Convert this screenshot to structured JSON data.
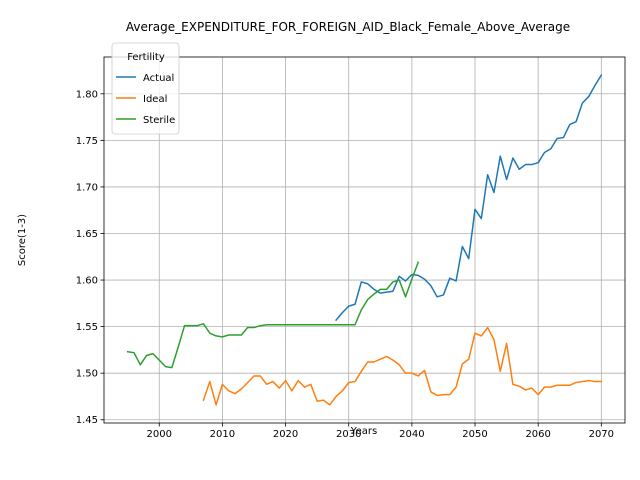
{
  "chart_data": {
    "type": "line",
    "title": "Average_EXPENDITURE_FOR_FOREIGN_AID_Black_Female_Above_Average",
    "xlabel": "Years",
    "ylabel": "Score(1-3)",
    "xlim": [
      1991.25,
      2073.75
    ],
    "ylim": [
      1.4465,
      1.8395
    ],
    "xticks": [
      "2000",
      "2010",
      "2020",
      "2030",
      "2040",
      "2050",
      "2060",
      "2070"
    ],
    "yticks": [
      "1.45",
      "1.50",
      "1.55",
      "1.60",
      "1.65",
      "1.70",
      "1.75",
      "1.80"
    ],
    "grid": true,
    "legend": {
      "title": "Fertility",
      "placement": "top-left"
    },
    "series": [
      {
        "name": "Actual",
        "color": "#1f77b4",
        "points": [
          [
            2028,
            1.557
          ],
          [
            2029,
            1.565
          ],
          [
            2030,
            1.572
          ],
          [
            2031,
            1.574
          ],
          [
            2032,
            1.598
          ],
          [
            2033,
            1.596
          ],
          [
            2034,
            1.59
          ],
          [
            2035,
            1.586
          ],
          [
            2036,
            1.587
          ],
          [
            2037,
            1.588
          ],
          [
            2038,
            1.604
          ],
          [
            2039,
            1.599
          ],
          [
            2040,
            1.606
          ],
          [
            2041,
            1.605
          ],
          [
            2042,
            1.601
          ],
          [
            2043,
            1.594
          ],
          [
            2044,
            1.582
          ],
          [
            2045,
            1.584
          ],
          [
            2046,
            1.602
          ],
          [
            2047,
            1.599
          ],
          [
            2048,
            1.636
          ],
          [
            2049,
            1.623
          ],
          [
            2050,
            1.676
          ],
          [
            2051,
            1.666
          ],
          [
            2052,
            1.713
          ],
          [
            2053,
            1.694
          ],
          [
            2054,
            1.733
          ],
          [
            2055,
            1.708
          ],
          [
            2056,
            1.731
          ],
          [
            2057,
            1.719
          ],
          [
            2058,
            1.724
          ],
          [
            2059,
            1.724
          ],
          [
            2060,
            1.726
          ],
          [
            2061,
            1.737
          ],
          [
            2062,
            1.741
          ],
          [
            2063,
            1.752
          ],
          [
            2064,
            1.753
          ],
          [
            2065,
            1.767
          ],
          [
            2066,
            1.77
          ],
          [
            2067,
            1.79
          ],
          [
            2068,
            1.797
          ],
          [
            2069,
            1.809
          ],
          [
            2070,
            1.82
          ]
        ]
      },
      {
        "name": "Ideal",
        "color": "#ff7f0e",
        "points": [
          [
            2007,
            1.471
          ],
          [
            2008,
            1.491
          ],
          [
            2009,
            1.466
          ],
          [
            2010,
            1.488
          ],
          [
            2011,
            1.481
          ],
          [
            2012,
            1.478
          ],
          [
            2013,
            1.483
          ],
          [
            2014,
            1.49
          ],
          [
            2015,
            1.497
          ],
          [
            2016,
            1.497
          ],
          [
            2017,
            1.488
          ],
          [
            2018,
            1.491
          ],
          [
            2019,
            1.484
          ],
          [
            2020,
            1.492
          ],
          [
            2021,
            1.481
          ],
          [
            2022,
            1.492
          ],
          [
            2023,
            1.485
          ],
          [
            2024,
            1.488
          ],
          [
            2025,
            1.47
          ],
          [
            2026,
            1.471
          ],
          [
            2027,
            1.466
          ],
          [
            2028,
            1.475
          ],
          [
            2029,
            1.481
          ],
          [
            2030,
            1.49
          ],
          [
            2031,
            1.491
          ],
          [
            2032,
            1.502
          ],
          [
            2033,
            1.512
          ],
          [
            2034,
            1.512
          ],
          [
            2035,
            1.515
          ],
          [
            2036,
            1.518
          ],
          [
            2037,
            1.514
          ],
          [
            2038,
            1.509
          ],
          [
            2039,
            1.5
          ],
          [
            2040,
            1.5
          ],
          [
            2041,
            1.497
          ],
          [
            2042,
            1.503
          ],
          [
            2043,
            1.48
          ],
          [
            2044,
            1.476
          ],
          [
            2045,
            1.477
          ],
          [
            2046,
            1.477
          ],
          [
            2047,
            1.485
          ],
          [
            2048,
            1.51
          ],
          [
            2049,
            1.515
          ],
          [
            2050,
            1.543
          ],
          [
            2051,
            1.54
          ],
          [
            2052,
            1.549
          ],
          [
            2053,
            1.536
          ],
          [
            2054,
            1.502
          ],
          [
            2055,
            1.532
          ],
          [
            2056,
            1.488
          ],
          [
            2057,
            1.486
          ],
          [
            2058,
            1.482
          ],
          [
            2059,
            1.484
          ],
          [
            2060,
            1.477
          ],
          [
            2061,
            1.485
          ],
          [
            2062,
            1.485
          ],
          [
            2063,
            1.487
          ],
          [
            2064,
            1.487
          ],
          [
            2065,
            1.487
          ],
          [
            2066,
            1.49
          ],
          [
            2067,
            1.491
          ],
          [
            2068,
            1.492
          ],
          [
            2069,
            1.491
          ],
          [
            2070,
            1.491
          ]
        ]
      },
      {
        "name": "Sterile",
        "color": "#2ca02c",
        "points": [
          [
            1995,
            1.523
          ],
          [
            1996,
            1.522
          ],
          [
            1997,
            1.509
          ],
          [
            1998,
            1.519
          ],
          [
            1999,
            1.521
          ],
          [
            2000,
            1.514
          ],
          [
            2001,
            1.507
          ],
          [
            2002,
            1.506
          ],
          [
            2003,
            1.528
          ],
          [
            2004,
            1.551
          ],
          [
            2005,
            1.551
          ],
          [
            2006,
            1.551
          ],
          [
            2007,
            1.553
          ],
          [
            2008,
            1.543
          ],
          [
            2009,
            1.54
          ],
          [
            2010,
            1.539
          ],
          [
            2011,
            1.541
          ],
          [
            2012,
            1.541
          ],
          [
            2013,
            1.541
          ],
          [
            2014,
            1.549
          ],
          [
            2015,
            1.549
          ],
          [
            2016,
            1.551
          ],
          [
            2017,
            1.552
          ],
          [
            2018,
            1.552
          ],
          [
            2019,
            1.552
          ],
          [
            2020,
            1.552
          ],
          [
            2021,
            1.552
          ],
          [
            2022,
            1.552
          ],
          [
            2023,
            1.552
          ],
          [
            2024,
            1.552
          ],
          [
            2025,
            1.552
          ],
          [
            2026,
            1.552
          ],
          [
            2027,
            1.552
          ],
          [
            2028,
            1.552
          ],
          [
            2029,
            1.552
          ],
          [
            2030,
            1.552
          ],
          [
            2031,
            1.552
          ],
          [
            2032,
            1.568
          ],
          [
            2033,
            1.579
          ],
          [
            2034,
            1.585
          ],
          [
            2035,
            1.59
          ],
          [
            2036,
            1.59
          ],
          [
            2037,
            1.598
          ],
          [
            2038,
            1.6
          ],
          [
            2039,
            1.582
          ],
          [
            2040,
            1.601
          ],
          [
            2041,
            1.619
          ]
        ]
      }
    ]
  }
}
